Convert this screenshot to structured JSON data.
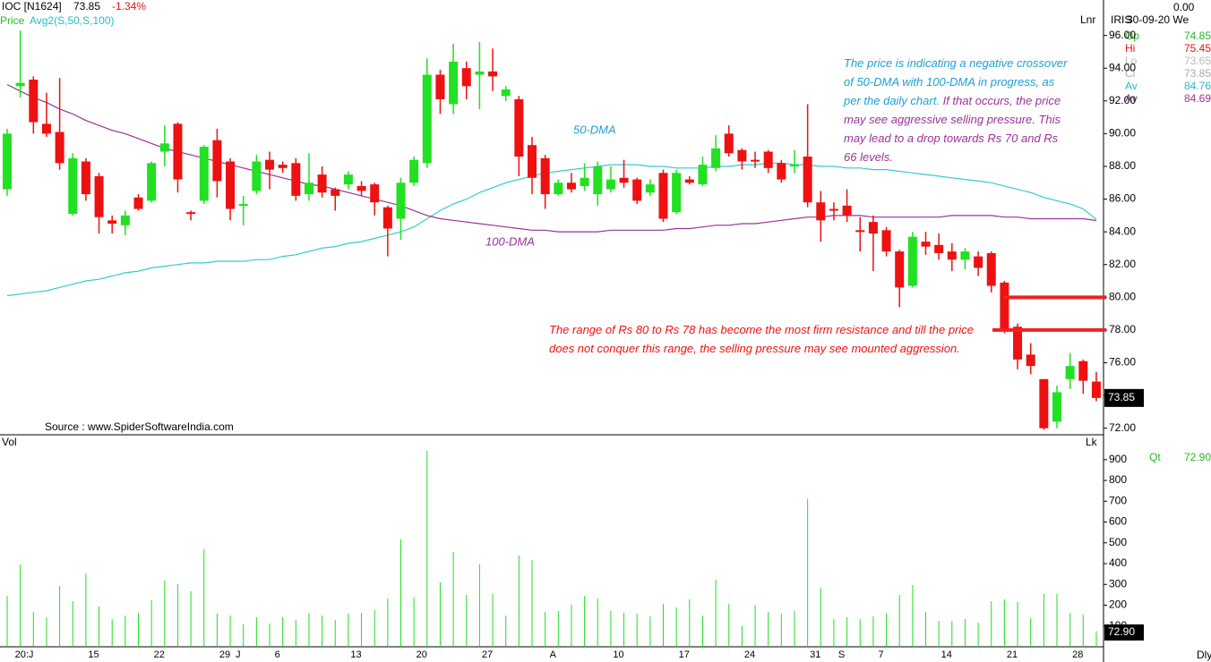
{
  "chart_data": {
    "type": "candlestick",
    "header": {
      "symbol": "IOC [N1624]",
      "change": {
        "value": -1.34,
        "label": "-1.34%"
      },
      "price_label": "Price",
      "indicator": "Avg2(S,50,S,100)",
      "scale": "Lnr",
      "vendor": "IRIS",
      "date": "30-09-20 We",
      "top_value": {
        "value": 0,
        "label": "0.00"
      },
      "op": "Op",
      "hi": "Hi",
      "lo": "Lo",
      "cl": "Cl",
      "av": "Av",
      "qt": "Qt",
      "vol": "Vol",
      "lk": "Lk",
      "period": "Dly"
    },
    "source": "Source : www.SpiderSoftwareIndia.com",
    "annotations": {
      "blue": "The price is indicating a negative crossover of 50-DMA with 100-DMA in progress, as per the daily chart.",
      "purple": "If that occurs, the price may see aggressive selling pressure. This may lead to a drop towards Rs 70 and Rs 66 levels.",
      "red": "The range of Rs 80 to Rs 78 has become the most firm resistance and till the price does not conquer this range, the selling pressure may see mounted aggression."
    },
    "categories": [
      null,
      "20:J",
      null,
      null,
      null,
      null,
      null,
      "15",
      null,
      null,
      null,
      null,
      "22",
      null,
      null,
      null,
      null,
      "29",
      "J",
      null,
      null,
      "6",
      null,
      null,
      null,
      null,
      null,
      "13",
      null,
      null,
      null,
      null,
      "20",
      null,
      null,
      null,
      null,
      "27",
      null,
      null,
      null,
      null,
      "A",
      null,
      null,
      null,
      null,
      "10",
      null,
      null,
      null,
      null,
      "17",
      null,
      null,
      null,
      null,
      "24",
      null,
      null,
      null,
      null,
      "31",
      null,
      "S",
      null,
      null,
      "7",
      null,
      null,
      null,
      null,
      "14",
      null,
      null,
      null,
      null,
      "21",
      null,
      null,
      null,
      null,
      "28",
      null
    ],
    "open": [
      86.6,
      92.9,
      93.3,
      90.6,
      90.1,
      85.1,
      88.3,
      87.4,
      84.7,
      84.4,
      86.1,
      85.9,
      88.9,
      90.6,
      85.2,
      85.9,
      89.6,
      88.3,
      85.6,
      86.5,
      88.4,
      88.1,
      88.2,
      86.3,
      87.5,
      86.6,
      86.9,
      86.8,
      86.9,
      85.5,
      84.8,
      87.0,
      88.2,
      93.6,
      91.8,
      94.0,
      93.6,
      93.8,
      92.3,
      92.1,
      89.3,
      88.5,
      86.3,
      87.0,
      86.8,
      86.3,
      86.6,
      87.3,
      87.2,
      86.4,
      87.6,
      85.2,
      87.2,
      86.9,
      87.9,
      90.0,
      89.0,
      88.4,
      88.9,
      88.2,
      88.0,
      88.6,
      85.8,
      85.4,
      85.6,
      84.1,
      84.6,
      84.1,
      82.8,
      80.7,
      83.4,
      83.2,
      82.8,
      82.3,
      82.5,
      82.7,
      80.9,
      78.2,
      76.5,
      75.0,
      72.4,
      75.0,
      76.1,
      74.85
    ],
    "high": [
      90.3,
      96.3,
      93.5,
      92.5,
      93.4,
      88.8,
      88.5,
      87.6,
      85.0,
      85.3,
      86.3,
      88.3,
      90.5,
      90.7,
      85.3,
      89.3,
      90.3,
      88.5,
      86.2,
      88.7,
      88.9,
      88.3,
      88.5,
      88.8,
      88.0,
      86.7,
      87.7,
      87.1,
      87.0,
      85.6,
      87.3,
      88.6,
      94.6,
      93.9,
      95.5,
      94.4,
      95.6,
      95.2,
      92.9,
      92.3,
      89.8,
      88.7,
      87.2,
      87.6,
      88.2,
      88.3,
      88.0,
      88.4,
      87.3,
      87.2,
      87.8,
      87.8,
      87.4,
      88.6,
      89.9,
      90.5,
      89.1,
      88.9,
      89.0,
      88.4,
      89.0,
      91.8,
      86.5,
      85.8,
      86.6,
      84.9,
      85.0,
      84.3,
      82.9,
      84.0,
      84.0,
      83.9,
      83.3,
      83.0,
      82.8,
      82.8,
      81.0,
      78.4,
      77.2,
      75.0,
      74.6,
      76.6,
      76.2,
      75.45
    ],
    "low": [
      86.2,
      92.2,
      90.0,
      89.8,
      87.8,
      85.0,
      85.9,
      83.9,
      83.9,
      83.8,
      85.3,
      85.8,
      88.0,
      86.4,
      84.7,
      85.7,
      86.1,
      84.7,
      84.4,
      86.3,
      86.6,
      87.6,
      85.9,
      85.9,
      86.1,
      85.3,
      86.6,
      86.2,
      85.0,
      82.5,
      83.5,
      86.8,
      87.9,
      91.2,
      91.2,
      92.1,
      91.5,
      92.6,
      92.0,
      87.4,
      86.3,
      85.4,
      86.2,
      86.4,
      86.5,
      85.6,
      86.4,
      86.7,
      85.7,
      86.2,
      84.6,
      85.1,
      86.9,
      86.8,
      87.7,
      88.6,
      87.8,
      87.9,
      87.6,
      87.0,
      87.6,
      85.5,
      83.4,
      84.7,
      84.6,
      82.8,
      81.6,
      82.5,
      79.4,
      80.6,
      82.6,
      82.3,
      81.6,
      81.7,
      81.3,
      80.3,
      77.8,
      75.6,
      75.3,
      71.9,
      72.0,
      74.4,
      74.1,
      73.65
    ],
    "close": [
      90.0,
      93.1,
      90.7,
      90.0,
      88.2,
      88.5,
      86.3,
      84.9,
      84.5,
      85.0,
      85.4,
      88.2,
      89.4,
      87.2,
      85.1,
      89.2,
      87.1,
      85.4,
      85.7,
      88.3,
      87.8,
      87.9,
      86.2,
      87.0,
      86.4,
      86.2,
      87.5,
      86.5,
      85.8,
      84.2,
      87.0,
      88.4,
      93.6,
      92.1,
      94.4,
      92.9,
      93.8,
      93.5,
      92.7,
      88.6,
      87.3,
      86.3,
      87.0,
      86.6,
      87.3,
      88.0,
      87.2,
      87.0,
      85.9,
      86.9,
      84.8,
      87.6,
      87.0,
      88.1,
      89.1,
      88.8,
      88.3,
      88.3,
      87.9,
      87.2,
      88.1,
      85.8,
      84.7,
      85.3,
      85.0,
      84.0,
      83.9,
      82.8,
      80.6,
      83.7,
      83.1,
      82.7,
      82.3,
      82.8,
      81.8,
      80.7,
      78.0,
      76.2,
      75.8,
      72.0,
      74.2,
      75.8,
      74.9,
      73.85
    ],
    "up_color": "#22e022",
    "down_color": "#ee1111",
    "series": [
      {
        "name": "50-DMA",
        "color": "#33cccc",
        "label_color": "#1e9fd6",
        "values": [
          80.1,
          80.2,
          80.3,
          80.4,
          80.6,
          80.8,
          81.0,
          81.1,
          81.3,
          81.5,
          81.6,
          81.8,
          81.9,
          82.0,
          82.1,
          82.1,
          82.2,
          82.2,
          82.2,
          82.3,
          82.3,
          82.5,
          82.6,
          82.8,
          83.0,
          83.1,
          83.3,
          83.4,
          83.6,
          83.8,
          84.0,
          84.3,
          84.8,
          85.3,
          85.7,
          86.0,
          86.4,
          86.7,
          87.0,
          87.2,
          87.4,
          87.6,
          87.7,
          87.8,
          87.9,
          88.0,
          88.1,
          88.1,
          88.1,
          88.0,
          88.0,
          87.9,
          87.9,
          87.9,
          88.0,
          88.0,
          88.1,
          88.1,
          88.2,
          88.2,
          88.1,
          88.1,
          88.0,
          88.0,
          87.9,
          87.9,
          87.8,
          87.8,
          87.7,
          87.6,
          87.5,
          87.4,
          87.3,
          87.2,
          87.1,
          87.0,
          86.8,
          86.6,
          86.4,
          86.1,
          85.9,
          85.7,
          85.4,
          84.76
        ]
      },
      {
        "name": "100-DMA",
        "color": "#993399",
        "label_color": "#993399",
        "values": [
          93.0,
          92.6,
          92.2,
          91.9,
          91.5,
          91.2,
          90.8,
          90.5,
          90.2,
          90.0,
          89.7,
          89.4,
          89.1,
          88.9,
          88.7,
          88.5,
          88.3,
          88.1,
          87.9,
          87.7,
          87.5,
          87.3,
          87.1,
          86.9,
          86.8,
          86.6,
          86.4,
          86.2,
          86.0,
          85.8,
          85.6,
          85.3,
          85.0,
          84.8,
          84.7,
          84.6,
          84.5,
          84.4,
          84.3,
          84.2,
          84.1,
          84.1,
          84.0,
          84.0,
          84.0,
          84.0,
          84.1,
          84.1,
          84.1,
          84.1,
          84.1,
          84.2,
          84.2,
          84.3,
          84.4,
          84.4,
          84.5,
          84.5,
          84.6,
          84.7,
          84.8,
          84.9,
          84.9,
          85.0,
          85.0,
          85.0,
          84.9,
          84.9,
          84.9,
          84.9,
          84.9,
          84.9,
          85.0,
          85.0,
          85.0,
          85.0,
          84.9,
          84.9,
          84.8,
          84.8,
          84.8,
          84.8,
          84.8,
          84.69
        ]
      }
    ],
    "volume": {
      "color": "#22dd22",
      "last_label": "72.90",
      "values": [
        245,
        396,
        168,
        142,
        292,
        219,
        353,
        194,
        133,
        150,
        163,
        224,
        318,
        301,
        267,
        469,
        159,
        150,
        108,
        142,
        112,
        142,
        129,
        163,
        150,
        129,
        159,
        163,
        176,
        232,
        516,
        237,
        942,
        310,
        456,
        249,
        396,
        254,
        150,
        439,
        417,
        168,
        172,
        202,
        245,
        232,
        172,
        163,
        159,
        146,
        206,
        189,
        228,
        150,
        323,
        206,
        99,
        202,
        168,
        159,
        172,
        710,
        284,
        133,
        142,
        133,
        146,
        163,
        249,
        297,
        168,
        125,
        125,
        133,
        116,
        219,
        228,
        215,
        138,
        254,
        254,
        163,
        155,
        72.9
      ]
    },
    "resistance": {
      "levels": [
        80,
        78
      ],
      "color": "#ee2222"
    },
    "ylim": [
      71.6,
      97.4
    ],
    "yticks": [
      {
        "value": 72,
        "label": "72.00"
      },
      {
        "value": 74,
        "label": "74.00"
      },
      {
        "value": 76,
        "label": "76.00"
      },
      {
        "value": 78,
        "label": "78.00"
      },
      {
        "value": 80,
        "label": "80.00"
      },
      {
        "value": 82,
        "label": "82.00"
      },
      {
        "value": 84,
        "label": "84.00"
      },
      {
        "value": 86,
        "label": "86.00"
      },
      {
        "value": 88,
        "label": "88.00"
      },
      {
        "value": 90,
        "label": "90.00"
      },
      {
        "value": 92,
        "label": "92.00"
      },
      {
        "value": 94,
        "label": "94.00"
      },
      {
        "value": 96,
        "label": "96.00"
      }
    ],
    "y2lim": [
      0,
      1011
    ],
    "y2ticks": [
      100,
      200,
      300,
      400,
      500,
      600,
      700,
      800,
      900
    ]
  }
}
